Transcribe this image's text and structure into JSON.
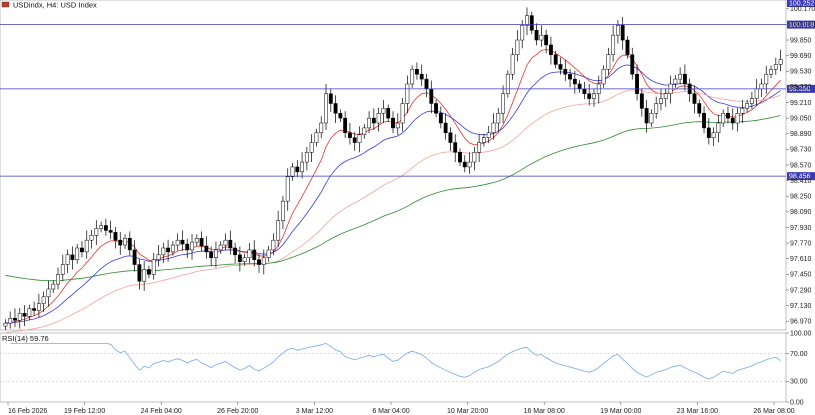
{
  "header": {
    "symbol_title": "USDindx, H4:  USD Index"
  },
  "rsi_panel": {
    "label": "RSI(14) 59.76"
  },
  "colors": {
    "bull_candle": "#ffffff",
    "bear_candle": "#000000",
    "ema_fast": "#e8362e",
    "ema_mid": "#3a3adf",
    "ema_slow": "#f2a39a",
    "ema_long": "#2e8b2e",
    "level_line": "#3a3ab8",
    "rsi_line": "#7aa8e8"
  },
  "chart_data": [
    {
      "type": "candlestick",
      "title": "USDindx, H4:  USD Index",
      "x_ticks": [
        "16 Feb 2026",
        "19 Feb 12:00",
        "24 Feb 04:00",
        "26 Feb 20:00",
        "3 Mar 12:00",
        "6 Mar 04:00",
        "10 Mar 20:00",
        "16 Mar 08:00",
        "19 Mar 00:00",
        "23 Mar 16:00",
        "26 Mar 08:00"
      ],
      "y_ticks": [
        96.97,
        97.13,
        97.29,
        97.45,
        97.61,
        97.77,
        97.93,
        98.09,
        98.25,
        98.41,
        98.57,
        98.73,
        98.89,
        99.05,
        99.21,
        99.37,
        99.53,
        99.69,
        99.85,
        100.01,
        100.17
      ],
      "ylim": [
        96.88,
        100.26
      ],
      "horizontal_levels": [
        {
          "label": "100.008",
          "value": 100.008
        },
        {
          "label": "99.350",
          "value": 99.35
        },
        {
          "label": "98.456",
          "value": 98.456
        }
      ],
      "top_tag": "100.252",
      "close_series": [
        96.95,
        97.0,
        96.98,
        97.05,
        97.02,
        97.1,
        97.08,
        97.15,
        97.22,
        97.3,
        97.35,
        97.45,
        97.55,
        97.65,
        97.6,
        97.72,
        97.68,
        97.8,
        97.85,
        97.92,
        97.95,
        97.9,
        97.88,
        97.8,
        97.75,
        97.82,
        97.7,
        97.55,
        97.38,
        97.5,
        97.45,
        97.6,
        97.65,
        97.72,
        97.68,
        97.75,
        97.8,
        97.76,
        97.7,
        97.78,
        97.82,
        97.74,
        97.68,
        97.62,
        97.7,
        97.75,
        97.8,
        97.72,
        97.65,
        97.58,
        97.62,
        97.7,
        97.6,
        97.55,
        97.62,
        97.7,
        97.8,
        98.0,
        98.2,
        98.45,
        98.55,
        98.5,
        98.6,
        98.7,
        98.8,
        98.9,
        99.0,
        99.3,
        99.2,
        99.1,
        99.05,
        98.9,
        98.85,
        98.8,
        98.88,
        98.95,
        99.05,
        99.0,
        99.1,
        99.15,
        99.05,
        98.95,
        99.0,
        99.2,
        99.4,
        99.55,
        99.5,
        99.45,
        99.35,
        99.2,
        99.1,
        99.0,
        98.9,
        98.8,
        98.7,
        98.6,
        98.55,
        98.6,
        98.7,
        98.8,
        98.85,
        98.9,
        99.0,
        99.1,
        99.3,
        99.5,
        99.7,
        99.85,
        100.0,
        100.1,
        99.95,
        99.85,
        99.9,
        99.8,
        99.7,
        99.6,
        99.55,
        99.5,
        99.45,
        99.4,
        99.35,
        99.3,
        99.25,
        99.3,
        99.4,
        99.55,
        99.7,
        99.9,
        100.0,
        99.85,
        99.7,
        99.5,
        99.3,
        99.15,
        99.0,
        99.1,
        99.2,
        99.25,
        99.3,
        99.4,
        99.45,
        99.5,
        99.4,
        99.3,
        99.2,
        99.1,
        98.95,
        98.85,
        98.9,
        99.0,
        99.1,
        99.05,
        99.0,
        99.1,
        99.15,
        99.2,
        99.25,
        99.35,
        99.4,
        99.5,
        99.55,
        99.6,
        99.65
      ]
    },
    {
      "type": "line",
      "title": "RSI(14) 59.76",
      "y_ticks": [
        100.0,
        70.0,
        30.0,
        0.0
      ],
      "ylim": [
        0,
        100
      ],
      "current_value": 59.76
    }
  ]
}
